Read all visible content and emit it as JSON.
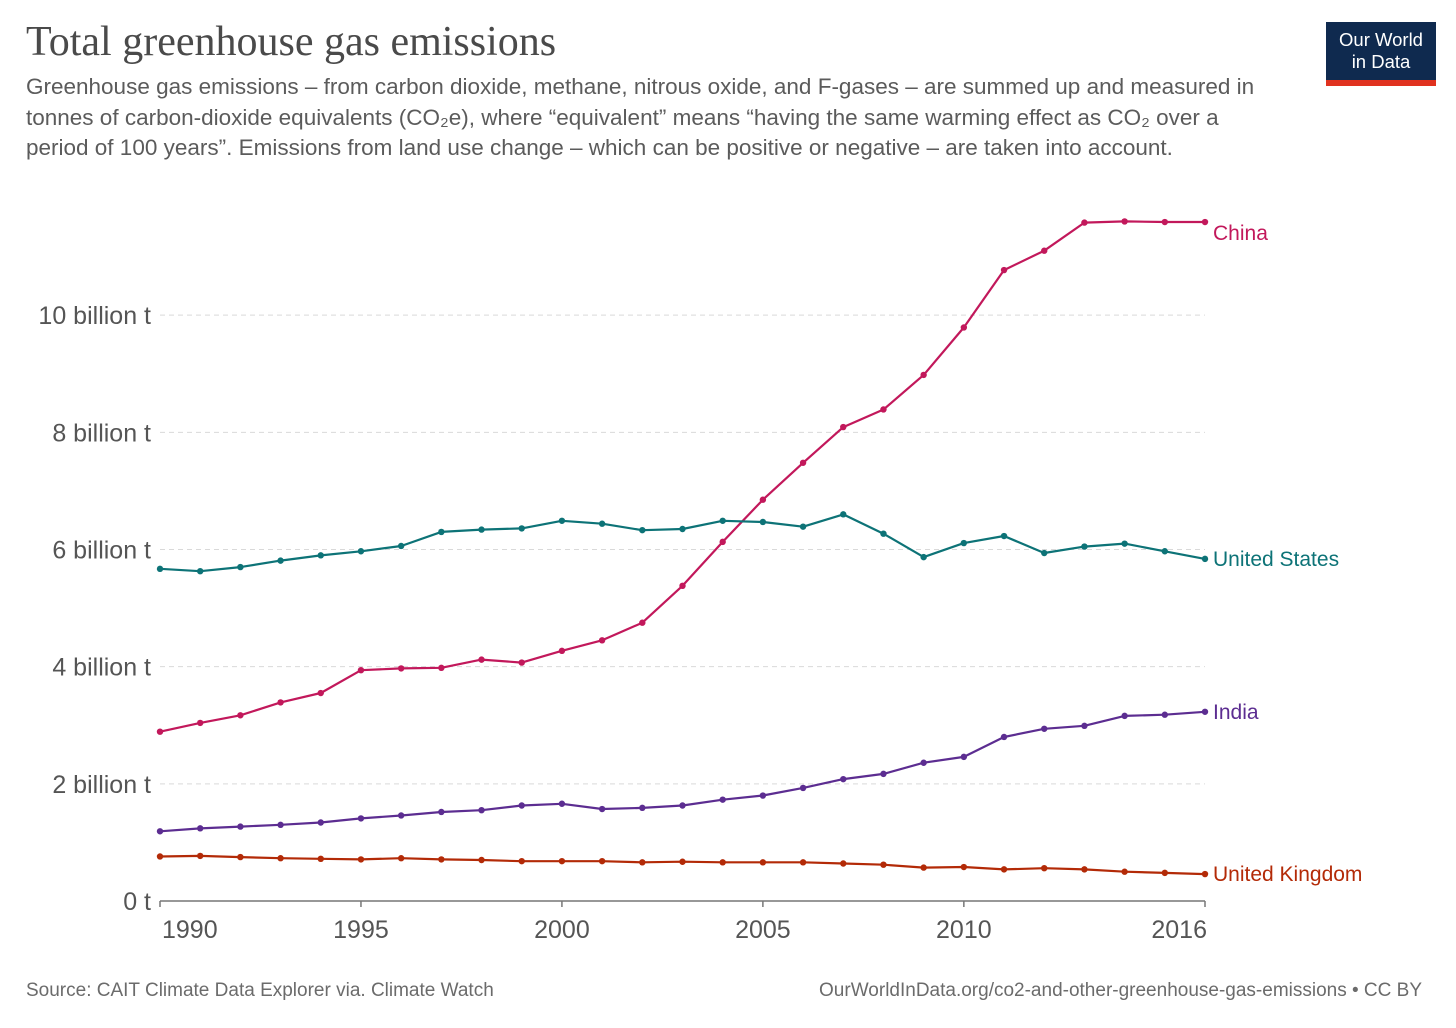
{
  "header": {
    "title": "Total greenhouse gas emissions",
    "subtitle": "Greenhouse gas emissions – from carbon dioxide, methane, nitrous oxide, and F-gases – are summed up and measured in tonnes of carbon-dioxide equivalents (CO₂e), where “equivalent” means “having the same warming effect as CO₂ over a period of 100 years”. Emissions from land use change – which can be positive or negative – are taken into account."
  },
  "logo": {
    "line1": "Our World",
    "line2": "in Data",
    "bg_color": "#0f2a4f",
    "accent_color": "#e0321f"
  },
  "footer": {
    "source": "Source: CAIT Climate Data Explorer via. Climate Watch",
    "link": "OurWorldInData.org/co2-and-other-greenhouse-gas-emissions • CC BY"
  },
  "chart_data": {
    "type": "line",
    "title": "Total greenhouse gas emissions",
    "xlabel": "",
    "ylabel": "",
    "xlim": [
      1990,
      2016
    ],
    "ylim": [
      0,
      12
    ],
    "x_ticks": [
      1990,
      1995,
      2000,
      2005,
      2010,
      2016
    ],
    "y_ticks": [
      {
        "value": 0,
        "label": "0 t"
      },
      {
        "value": 2,
        "label": "2 billion t"
      },
      {
        "value": 4,
        "label": "4 billion t"
      },
      {
        "value": 6,
        "label": "6 billion t"
      },
      {
        "value": 8,
        "label": "8 billion t"
      },
      {
        "value": 10,
        "label": "10 billion t"
      }
    ],
    "grid": "horizontal dashed",
    "legend": "inline labels at line ends",
    "x": [
      1990,
      1991,
      1992,
      1993,
      1994,
      1995,
      1996,
      1997,
      1998,
      1999,
      2000,
      2001,
      2002,
      2003,
      2004,
      2005,
      2006,
      2007,
      2008,
      2009,
      2010,
      2011,
      2012,
      2013,
      2014,
      2015,
      2016
    ],
    "series": [
      {
        "name": "China",
        "color": "#c2185b",
        "values": [
          2.89,
          3.04,
          3.17,
          3.39,
          3.55,
          3.94,
          3.97,
          3.98,
          4.12,
          4.07,
          4.27,
          4.45,
          4.75,
          5.38,
          6.13,
          6.85,
          7.48,
          8.09,
          8.39,
          8.98,
          9.79,
          10.77,
          11.1,
          11.58,
          11.6,
          11.59,
          11.59
        ]
      },
      {
        "name": "United States",
        "color": "#0d7377",
        "values": [
          5.67,
          5.63,
          5.7,
          5.81,
          5.9,
          5.97,
          6.06,
          6.3,
          6.34,
          6.36,
          6.49,
          6.44,
          6.33,
          6.35,
          6.49,
          6.47,
          6.39,
          6.6,
          6.27,
          5.87,
          6.11,
          6.23,
          5.94,
          6.05,
          6.1,
          5.97,
          5.84
        ]
      },
      {
        "name": "India",
        "color": "#5c2d91",
        "values": [
          1.19,
          1.24,
          1.27,
          1.3,
          1.34,
          1.41,
          1.46,
          1.52,
          1.55,
          1.63,
          1.66,
          1.57,
          1.59,
          1.63,
          1.73,
          1.8,
          1.93,
          2.08,
          2.17,
          2.36,
          2.46,
          2.8,
          2.94,
          2.99,
          3.16,
          3.18,
          3.23
        ]
      },
      {
        "name": "United Kingdom",
        "color": "#b32a07",
        "values": [
          0.76,
          0.77,
          0.75,
          0.73,
          0.72,
          0.71,
          0.73,
          0.71,
          0.7,
          0.68,
          0.68,
          0.68,
          0.66,
          0.67,
          0.66,
          0.66,
          0.66,
          0.64,
          0.62,
          0.57,
          0.58,
          0.54,
          0.56,
          0.54,
          0.5,
          0.48,
          0.46
        ]
      }
    ]
  }
}
